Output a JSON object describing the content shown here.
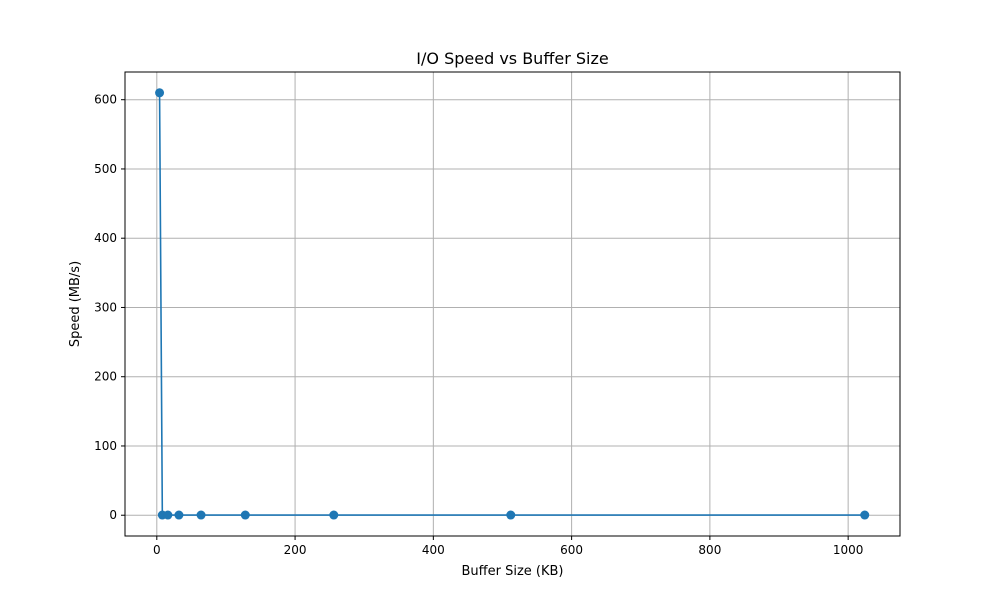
{
  "chart_data": {
    "type": "line",
    "title": "I/O Speed vs Buffer Size",
    "xlabel": "Buffer Size (KB)",
    "ylabel": "Speed (MB/s)",
    "xlim": [
      -46,
      1075
    ],
    "ylim": [
      -30,
      640
    ],
    "xticks": [
      0,
      200,
      400,
      600,
      800,
      1000
    ],
    "yticks": [
      0,
      100,
      200,
      300,
      400,
      500,
      600
    ],
    "grid": true,
    "series": [
      {
        "color": "#1f77b4",
        "marker": "circle",
        "x": [
          4,
          8,
          16,
          32,
          64,
          128,
          256,
          512,
          1024
        ],
        "y": [
          610,
          0.3,
          0.3,
          0.3,
          0.3,
          0.3,
          0.3,
          0.3,
          0.3
        ]
      }
    ]
  }
}
